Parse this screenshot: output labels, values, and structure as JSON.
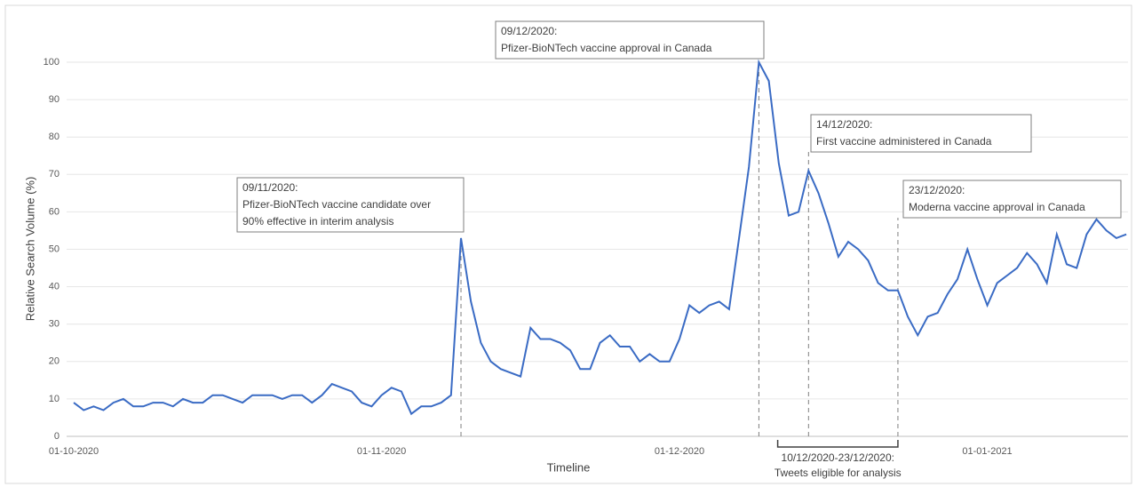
{
  "chart_data": {
    "type": "line",
    "x_label": "Timeline",
    "y_label": "Relative Search Volume (%)",
    "x": [
      "01-10-2020",
      "02-10-2020",
      "03-10-2020",
      "04-10-2020",
      "05-10-2020",
      "06-10-2020",
      "07-10-2020",
      "08-10-2020",
      "09-10-2020",
      "10-10-2020",
      "11-10-2020",
      "12-10-2020",
      "13-10-2020",
      "14-10-2020",
      "15-10-2020",
      "16-10-2020",
      "17-10-2020",
      "18-10-2020",
      "19-10-2020",
      "20-10-2020",
      "21-10-2020",
      "22-10-2020",
      "23-10-2020",
      "24-10-2020",
      "25-10-2020",
      "26-10-2020",
      "27-10-2020",
      "28-10-2020",
      "29-10-2020",
      "30-10-2020",
      "31-10-2020",
      "01-11-2020",
      "02-11-2020",
      "03-11-2020",
      "04-11-2020",
      "05-11-2020",
      "06-11-2020",
      "07-11-2020",
      "08-11-2020",
      "09-11-2020",
      "10-11-2020",
      "11-11-2020",
      "12-11-2020",
      "13-11-2020",
      "14-11-2020",
      "15-11-2020",
      "16-11-2020",
      "17-11-2020",
      "18-11-2020",
      "19-11-2020",
      "20-11-2020",
      "21-11-2020",
      "22-11-2020",
      "23-11-2020",
      "24-11-2020",
      "25-11-2020",
      "26-11-2020",
      "27-11-2020",
      "28-11-2020",
      "29-11-2020",
      "30-11-2020",
      "01-12-2020",
      "02-12-2020",
      "03-12-2020",
      "04-12-2020",
      "05-12-2020",
      "06-12-2020",
      "07-12-2020",
      "08-12-2020",
      "09-12-2020",
      "10-12-2020",
      "11-12-2020",
      "12-12-2020",
      "13-12-2020",
      "14-12-2020",
      "15-12-2020",
      "16-12-2020",
      "17-12-2020",
      "18-12-2020",
      "19-12-2020",
      "20-12-2020",
      "21-12-2020",
      "22-12-2020",
      "23-12-2020",
      "24-12-2020",
      "25-12-2020",
      "26-12-2020",
      "27-12-2020",
      "28-12-2020",
      "29-12-2020",
      "30-12-2020",
      "31-12-2020",
      "01-01-2021",
      "02-01-2021",
      "03-01-2021",
      "04-01-2021",
      "05-01-2021",
      "06-01-2021",
      "07-01-2021",
      "08-01-2021",
      "09-01-2021",
      "10-01-2021",
      "11-01-2021",
      "12-01-2021",
      "13-01-2021",
      "14-01-2021",
      "15-01-2021"
    ],
    "series": [
      {
        "color": "#3a6bc4",
        "values": [
          9,
          7,
          8,
          7,
          9,
          10,
          8,
          8,
          9,
          9,
          8,
          10,
          9,
          9,
          11,
          11,
          10,
          9,
          11,
          11,
          11,
          10,
          11,
          11,
          9,
          11,
          14,
          13,
          12,
          9,
          8,
          11,
          13,
          12,
          6,
          8,
          8,
          9,
          11,
          53,
          36,
          25,
          20,
          18,
          17,
          16,
          29,
          26,
          26,
          25,
          23,
          18,
          18,
          25,
          27,
          24,
          24,
          20,
          22,
          20,
          20,
          26,
          35,
          33,
          35,
          36,
          34,
          53,
          72,
          100,
          95,
          73,
          59,
          60,
          71,
          65,
          57,
          48,
          52,
          50,
          47,
          41,
          39,
          39,
          32,
          27,
          32,
          33,
          38,
          42,
          50,
          42,
          35,
          41,
          43,
          45,
          49,
          46,
          41,
          54,
          46,
          45,
          54,
          58,
          55,
          53,
          54
        ]
      }
    ],
    "xticks": [
      "01-10-2020",
      "01-11-2020",
      "01-12-2020",
      "01-01-2021"
    ],
    "ylim": [
      0,
      100
    ],
    "yticks": [
      0,
      10,
      20,
      30,
      40,
      50,
      60,
      70,
      80,
      90,
      100
    ],
    "grid": true,
    "annotations": [
      {
        "x": "09-11-2020",
        "text": [
          "09/11/2020:",
          "Pfizer-BioNTech vaccine candidate over",
          "90% effective in interim analysis"
        ]
      },
      {
        "x": "09-12-2020",
        "text": [
          "09/12/2020:",
          "Pfizer-BioNTech vaccine approval in Canada"
        ]
      },
      {
        "x": "14-12-2020",
        "text": [
          "14/12/2020:",
          "First vaccine administered in Canada"
        ]
      },
      {
        "x": "23-12-2020",
        "text": [
          "23/12/2020:",
          "Moderna vaccine approval in Canada"
        ]
      }
    ],
    "span": {
      "from": "10-12-2020",
      "to": "23-12-2020",
      "text": [
        "10/12/2020-23/12/2020:",
        "Tweets eligible for analysis"
      ]
    }
  }
}
